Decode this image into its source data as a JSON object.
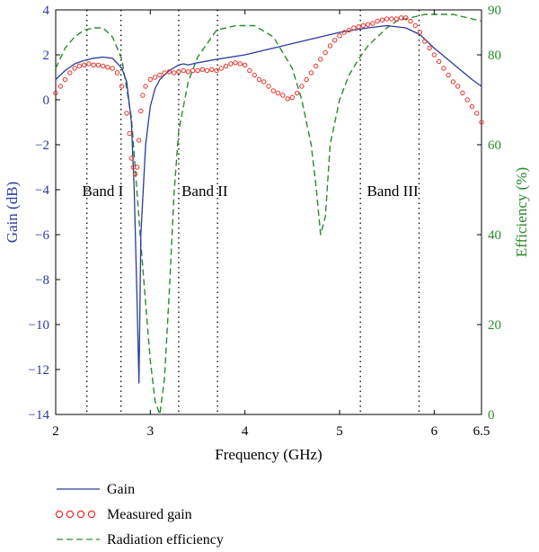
{
  "chart_data": {
    "type": "line",
    "xlabel": "Frequency (GHz)",
    "ylabel": "Gain (dB)",
    "y2label": "Efficiency (%)",
    "xlim": [
      2,
      6.5
    ],
    "ylim": [
      -14,
      4
    ],
    "y2lim": [
      0,
      90
    ],
    "x_ticks": [
      2,
      3,
      4,
      5,
      6,
      6.5
    ],
    "y_ticks": [
      4,
      2,
      0,
      -2,
      -4,
      -6,
      -8,
      -10,
      -12,
      -14
    ],
    "y2_ticks": [
      90,
      80,
      60,
      40,
      20,
      0
    ],
    "colors": {
      "gain": "#2b3a9c",
      "measured": "#e53027",
      "efficiency": "#2a8a2a",
      "left_axis": "#2b3a9c",
      "right_axis": "#2a8a2a"
    },
    "band_lines": [
      2.33,
      2.69,
      3.3,
      3.71,
      5.22,
      5.84
    ],
    "bands": [
      {
        "label": "Band I",
        "x": 2.28
      },
      {
        "label": "Band II",
        "x": 3.33
      },
      {
        "label": "Band III",
        "x": 5.29
      }
    ],
    "legend": [
      {
        "label": "Gain",
        "style": "solid"
      },
      {
        "label": "Measured gain",
        "style": "circles"
      },
      {
        "label": "Radiation efficiency",
        "style": "dashed"
      }
    ],
    "series": [
      {
        "name": "Gain",
        "axis": "left",
        "style": "solid",
        "x": [
          2.0,
          2.1,
          2.2,
          2.3,
          2.4,
          2.5,
          2.6,
          2.7,
          2.75,
          2.8,
          2.83,
          2.86,
          2.88,
          2.9,
          2.95,
          3.0,
          3.05,
          3.1,
          3.2,
          3.3,
          3.35,
          3.4,
          3.5,
          3.7,
          4.0,
          4.5,
          5.0,
          5.3,
          5.5,
          5.7,
          5.85,
          6.0,
          6.2,
          6.4,
          6.5
        ],
        "y": [
          0.9,
          1.3,
          1.6,
          1.75,
          1.85,
          1.9,
          1.85,
          1.4,
          0.8,
          -1.0,
          -4.0,
          -9.0,
          -12.6,
          -6.0,
          -2.0,
          -0.3,
          0.5,
          0.9,
          1.3,
          1.55,
          1.6,
          1.55,
          1.65,
          1.8,
          2.0,
          2.5,
          3.0,
          3.2,
          3.3,
          3.2,
          2.9,
          2.3,
          1.6,
          0.9,
          0.6
        ]
      },
      {
        "name": "Measured gain",
        "axis": "left",
        "style": "circles",
        "x": [
          2.0,
          2.05,
          2.1,
          2.15,
          2.2,
          2.25,
          2.3,
          2.35,
          2.4,
          2.45,
          2.5,
          2.55,
          2.6,
          2.65,
          2.7,
          2.75,
          2.78,
          2.8,
          2.82,
          2.84,
          2.86,
          2.88,
          2.9,
          2.92,
          2.95,
          3.0,
          3.05,
          3.1,
          3.15,
          3.2,
          3.25,
          3.3,
          3.35,
          3.4,
          3.45,
          3.5,
          3.55,
          3.6,
          3.65,
          3.7,
          3.75,
          3.8,
          3.85,
          3.9,
          3.95,
          4.0,
          4.05,
          4.1,
          4.15,
          4.2,
          4.25,
          4.3,
          4.35,
          4.4,
          4.45,
          4.5,
          4.55,
          4.6,
          4.65,
          4.7,
          4.75,
          4.8,
          4.85,
          4.9,
          4.95,
          5.0,
          5.05,
          5.1,
          5.15,
          5.2,
          5.25,
          5.3,
          5.35,
          5.4,
          5.45,
          5.5,
          5.55,
          5.6,
          5.65,
          5.7,
          5.75,
          5.8,
          5.85,
          5.9,
          5.95,
          6.0,
          6.05,
          6.1,
          6.15,
          6.2,
          6.25,
          6.3,
          6.35,
          6.4,
          6.45,
          6.5
        ],
        "y": [
          0.3,
          0.6,
          0.9,
          1.2,
          1.4,
          1.5,
          1.55,
          1.6,
          1.55,
          1.55,
          1.5,
          1.45,
          1.4,
          1.2,
          0.6,
          -0.6,
          -1.5,
          -2.6,
          -3.0,
          -3.3,
          -3.0,
          -1.8,
          -0.5,
          0.2,
          0.6,
          0.9,
          1.0,
          1.1,
          1.2,
          1.25,
          1.2,
          1.25,
          1.3,
          1.25,
          1.3,
          1.3,
          1.35,
          1.3,
          1.35,
          1.3,
          1.4,
          1.5,
          1.6,
          1.65,
          1.6,
          1.55,
          1.3,
          1.1,
          0.9,
          0.8,
          0.6,
          0.4,
          0.3,
          0.2,
          0.05,
          0.1,
          0.3,
          0.6,
          0.9,
          1.2,
          1.5,
          1.8,
          2.1,
          2.4,
          2.65,
          2.85,
          3.0,
          3.1,
          3.2,
          3.25,
          3.3,
          3.35,
          3.4,
          3.5,
          3.55,
          3.6,
          3.6,
          3.6,
          3.65,
          3.65,
          3.5,
          3.3,
          3.0,
          2.6,
          2.3,
          2.0,
          1.7,
          1.4,
          1.1,
          0.8,
          0.6,
          0.3,
          0.0,
          -0.3,
          -0.6,
          -1.0
        ]
      },
      {
        "name": "Radiation efficiency",
        "axis": "right",
        "style": "dashed",
        "x": [
          2.0,
          2.1,
          2.2,
          2.3,
          2.4,
          2.5,
          2.6,
          2.7,
          2.8,
          2.9,
          3.0,
          3.05,
          3.1,
          3.15,
          3.2,
          3.25,
          3.3,
          3.4,
          3.5,
          3.7,
          3.9,
          4.1,
          4.3,
          4.5,
          4.6,
          4.7,
          4.75,
          4.8,
          4.85,
          4.9,
          5.0,
          5.1,
          5.2,
          5.3,
          5.4,
          5.5,
          5.6,
          5.7,
          5.8,
          5.9,
          6.0,
          6.1,
          6.2,
          6.3,
          6.4,
          6.5
        ],
        "y": [
          77,
          81.5,
          84,
          85.5,
          86,
          86,
          84,
          79,
          66,
          38,
          12,
          3,
          0,
          8,
          27,
          49,
          63,
          74,
          79.5,
          85.5,
          86.5,
          86.5,
          84,
          77,
          70,
          60,
          51,
          40,
          44,
          60,
          70,
          75.5,
          79,
          82,
          84,
          86,
          87.5,
          88,
          88.5,
          89,
          89,
          89,
          89,
          88.5,
          88,
          87.5
        ]
      }
    ]
  }
}
